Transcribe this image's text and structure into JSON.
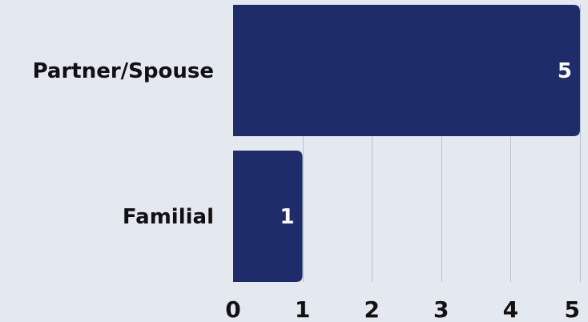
{
  "chart_data": {
    "type": "bar",
    "orientation": "horizontal",
    "categories": [
      "Partner/Spouse",
      "Familial"
    ],
    "values": [
      5,
      1
    ],
    "title": "",
    "xlabel": "",
    "ylabel": "",
    "xlim": [
      0,
      5
    ],
    "xticks": [
      "0",
      "1",
      "2",
      "3",
      "4",
      "5"
    ],
    "value_labels": [
      "5",
      "1"
    ],
    "grid": true,
    "legend": "none",
    "bar_color": "#1f2c6a",
    "background_color": "#e4e9f0"
  }
}
